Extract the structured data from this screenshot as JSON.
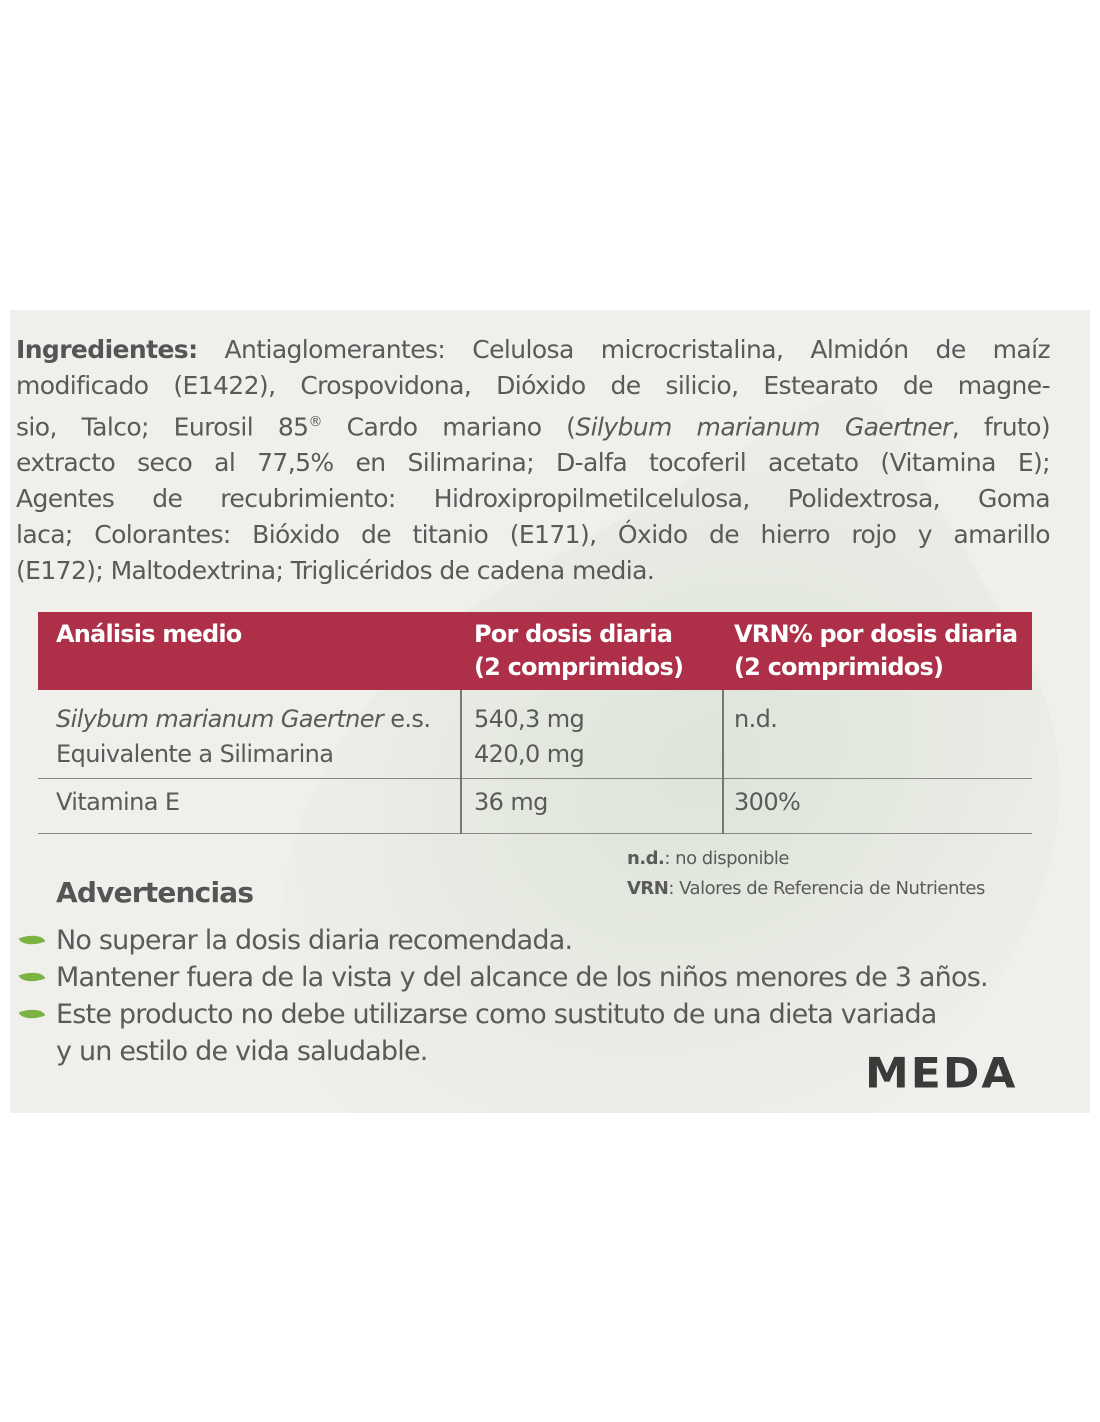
{
  "ingredients": {
    "lines": [
      [
        {
          "t": "Ingredientes:",
          "s": "b"
        },
        {
          "t": " Antiaglomerantes: Celulosa microcristalina, Almidón de maíz",
          "s": ""
        }
      ],
      [
        {
          "t": "modificado (E1422), Crospovidona, Dióxido de silicio, Estearato de magne-",
          "s": ""
        }
      ],
      [
        {
          "t": "sio, Talco; Eurosil 85",
          "s": ""
        },
        {
          "t": "®",
          "s": "sup"
        },
        {
          "t": " Cardo mariano (",
          "s": ""
        },
        {
          "t": "Silybum marianum Gaertner",
          "s": "i"
        },
        {
          "t": ", fruto)",
          "s": ""
        }
      ],
      [
        {
          "t": "extracto seco al 77,5% en Silimarina; D-alfa tocoferil acetato (Vitamina E);",
          "s": ""
        }
      ],
      [
        {
          "t": "Agentes de recubrimiento: Hidroxipropilmetilcelulosa, Polidextrosa, Goma",
          "s": ""
        }
      ],
      [
        {
          "t": "laca; Colorantes: Bióxido de titanio (E171), Óxido de hierro rojo y amarillo",
          "s": ""
        }
      ],
      [
        {
          "t": "(E172); Maltodextrina; Triglicéridos de cadena media.",
          "s": ""
        }
      ]
    ]
  },
  "table": {
    "header": {
      "col1": "Análisis medio",
      "col2a": "Por dosis diaria",
      "col2b": "(2 comprimidos)",
      "col3a": "VRN% por dosis diaria",
      "col3b": "(2 comprimidos)"
    },
    "rows": [
      {
        "name_italic": "Silybum marianum Gaertner",
        "name_suffix": " e.s.",
        "name2": "Equivalente a Silimarina",
        "dose": "540,3 mg",
        "dose2": "420,0 mg",
        "vrn": "n.d."
      },
      {
        "name": "Vitamina E",
        "dose": "36 mg",
        "vrn": "300%"
      }
    ],
    "header_color": "#ad2f48"
  },
  "legend": [
    {
      "abbr": "n.d.",
      "text": ": no disponible"
    },
    {
      "abbr": "VRN",
      "text": ": Valores de Referencia de Nutrientes"
    }
  ],
  "warnings": {
    "title": "Advertencias",
    "items": [
      {
        "l1": "No superar la dosis diaria recomendada."
      },
      {
        "l1": "Mantener fuera de la vista y del alcance de los niños menores de 3 años."
      },
      {
        "l1": "Este producto no debe utilizarse como sustituto de una dieta variada",
        "l2": "y un estilo de vida saludable."
      }
    ],
    "bullet_icon": "leaf-icon",
    "bullet_color": "#7cb342"
  },
  "brand": "MEDA"
}
